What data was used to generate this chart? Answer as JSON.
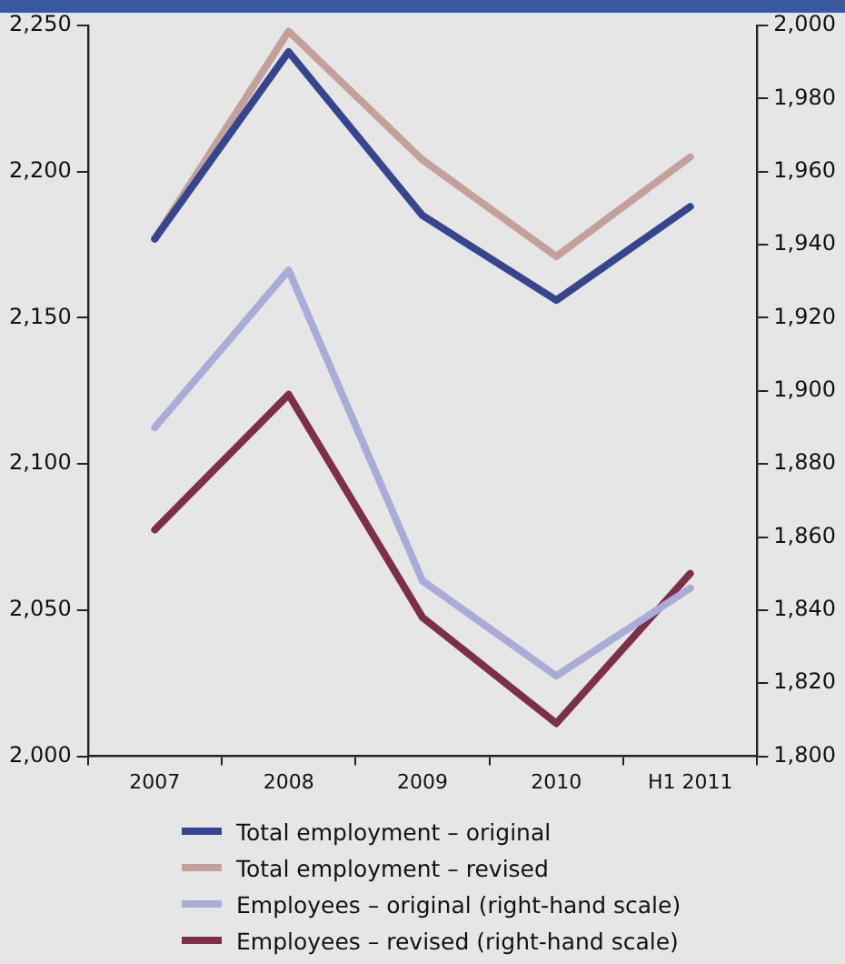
{
  "chart_data": {
    "type": "line",
    "categories": [
      "2007",
      "2008",
      "2009",
      "2010",
      "H1 2011"
    ],
    "series": [
      {
        "name": "Total employment – original",
        "color": "#36468e",
        "values": [
          2177,
          2241,
          2185,
          2156,
          2188
        ]
      },
      {
        "name": "Total employment – revised",
        "color": "#c4a09a",
        "values": [
          2177,
          2248,
          2204,
          2171,
          2205
        ]
      },
      {
        "name": "Employees – original (right-hand scale)",
        "color": "#a9acd6",
        "values": [
          1890,
          1933,
          1848,
          1822,
          1846
        ],
        "axis": "y2"
      },
      {
        "name": "Employees – revised (right-hand scale)",
        "color": "#7d2f4a",
        "values": [
          1862,
          1899,
          1838,
          1809,
          1850
        ],
        "axis": "y2"
      }
    ],
    "ylim": [
      2000,
      2250
    ],
    "yticks": [
      {
        "value": 2000,
        "label": "2,000"
      },
      {
        "value": 2050,
        "label": "2,050"
      },
      {
        "value": 2100,
        "label": "2,100"
      },
      {
        "value": 2150,
        "label": "2,150"
      },
      {
        "value": 2200,
        "label": "2,200"
      },
      {
        "value": 2250,
        "label": "2,250"
      }
    ],
    "y2lim": [
      1800,
      2000
    ],
    "y2ticks": [
      {
        "value": 1800,
        "label": "1,800"
      },
      {
        "value": 1820,
        "label": "1,820"
      },
      {
        "value": 1840,
        "label": "1,840"
      },
      {
        "value": 1860,
        "label": "1,860"
      },
      {
        "value": 1880,
        "label": "1,880"
      },
      {
        "value": 1900,
        "label": "1,900"
      },
      {
        "value": 1920,
        "label": "1,920"
      },
      {
        "value": 1940,
        "label": "1,940"
      },
      {
        "value": 1960,
        "label": "1,960"
      },
      {
        "value": 1980,
        "label": "1,980"
      },
      {
        "value": 2000,
        "label": "2,000"
      }
    ],
    "grid": false,
    "legend": "bottom",
    "marker": "none",
    "line_style": "solid"
  }
}
